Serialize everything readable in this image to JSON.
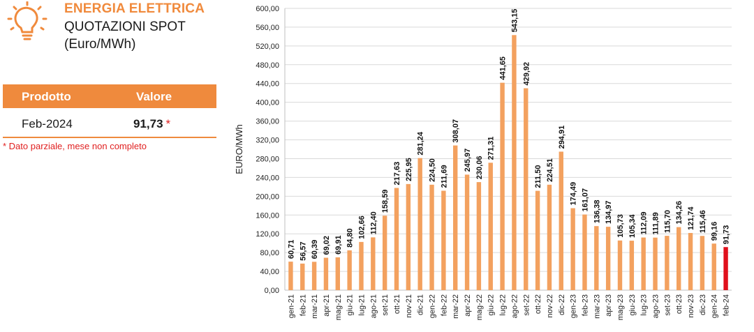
{
  "header": {
    "title": "ENERGIA ELETTRICA",
    "subtitle": "QUOTAZIONI SPOT",
    "unit": "(Euro/MWh)"
  },
  "table": {
    "col_product": "Prodotto",
    "col_value": "Valore",
    "row_product": "Feb-2024",
    "row_value": "91,73",
    "row_mark": "*"
  },
  "note": "* Dato parziale, mese non completo",
  "colors": {
    "accent": "#ef8a3d",
    "bar": "#f3a15f",
    "highlight": "#e0101c"
  },
  "chart_data": {
    "type": "bar",
    "ylabel": "EURO/MWh",
    "ylim": [
      0,
      600
    ],
    "yticks": [
      "0,00",
      "40,00",
      "80,00",
      "120,00",
      "160,00",
      "200,00",
      "240,00",
      "280,00",
      "320,00",
      "360,00",
      "400,00",
      "440,00",
      "480,00",
      "520,00",
      "560,00",
      "600,00"
    ],
    "categories": [
      "gen-21",
      "feb-21",
      "mar-21",
      "apr-21",
      "mag-21",
      "giu-21",
      "lug-21",
      "ago-21",
      "set-21",
      "ott-21",
      "nov-21",
      "dic-21",
      "gen-22",
      "feb-22",
      "mar-22",
      "apr-22",
      "mag-22",
      "giu-22",
      "lug-22",
      "ago-22",
      "set-22",
      "ott-22",
      "nov-22",
      "dic-22",
      "gen-23",
      "feb-23",
      "mar-23",
      "apr-23",
      "mag-23",
      "giu-23",
      "lug-23",
      "ago-23",
      "set-23",
      "ott-23",
      "nov-23",
      "dic-23",
      "gen-24",
      "feb-24"
    ],
    "values": [
      60.71,
      56.57,
      60.39,
      69.02,
      69.91,
      84.8,
      102.66,
      112.4,
      158.59,
      217.63,
      225.95,
      281.24,
      224.5,
      211.69,
      308.07,
      245.97,
      230.06,
      271.31,
      441.65,
      543.15,
      429.92,
      211.5,
      224.51,
      294.91,
      174.49,
      161.07,
      136.38,
      134.97,
      105.73,
      105.34,
      112.09,
      111.89,
      115.7,
      134.26,
      121.74,
      115.46,
      99.16,
      91.73
    ],
    "value_labels": [
      "60,71",
      "56,57",
      "60,39",
      "69,02",
      "69,91",
      "84,80",
      "102,66",
      "112,40",
      "158,59",
      "217,63",
      "225,95",
      "281,24",
      "224,50",
      "211,69",
      "308,07",
      "245,97",
      "230,06",
      "271,31",
      "441,65",
      "543,15",
      "429,92",
      "211,50",
      "224,51",
      "294,91",
      "174,49",
      "161,07",
      "136,38",
      "134,97",
      "105,73",
      "105,34",
      "112,09",
      "111,89",
      "115,70",
      "134,26",
      "121,74",
      "115,46",
      "99,16",
      "91,73"
    ],
    "highlight_index": 37,
    "grid": true,
    "legend": "none"
  }
}
